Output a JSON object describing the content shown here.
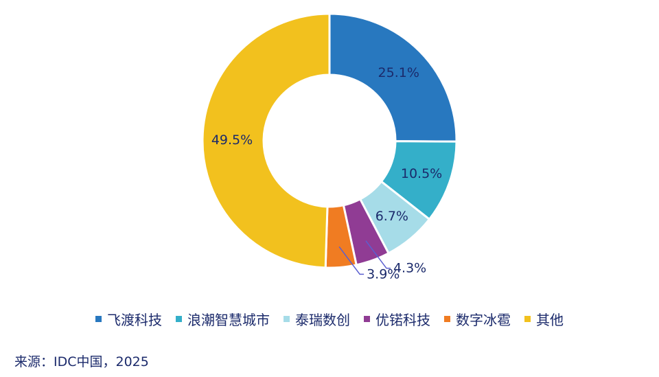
{
  "chart_data": {
    "type": "pie",
    "donut": true,
    "title": "",
    "series": [
      {
        "name": "飞渡科技",
        "value": 25.1,
        "label": "25.1%",
        "color": "#2878bf"
      },
      {
        "name": "浪潮智慧城市",
        "value": 10.5,
        "label": "10.5%",
        "color": "#34afc9"
      },
      {
        "name": "泰瑞数创",
        "value": 6.7,
        "label": "6.7%",
        "color": "#a6dce8"
      },
      {
        "name": "优锘科技",
        "value": 4.3,
        "label": "4.3%",
        "color": "#903c94"
      },
      {
        "name": "数字冰雹",
        "value": 3.9,
        "label": "3.9%",
        "color": "#f07c22"
      },
      {
        "name": "其他",
        "value": 49.5,
        "label": "49.5%",
        "color": "#f2c11e"
      }
    ],
    "legend_position": "bottom",
    "source": "来源：IDC中国，2025"
  }
}
